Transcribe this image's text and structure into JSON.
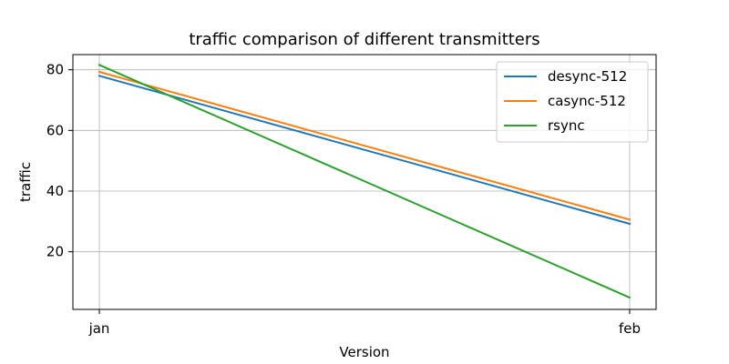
{
  "chart_data": {
    "type": "line",
    "title": "traffic comparison of different transmitters",
    "xlabel": "Version",
    "ylabel": "traffic",
    "categories": [
      "jan",
      "feb"
    ],
    "ylim": [
      1,
      85
    ],
    "yticks": [
      20,
      40,
      60,
      80
    ],
    "grid": true,
    "legend_position": "top-right",
    "series": [
      {
        "name": "desync-512",
        "color": "#1f77b4",
        "values": [
          78,
          29.2
        ]
      },
      {
        "name": "casync-512",
        "color": "#ff7f0e",
        "values": [
          79.3,
          30.6
        ]
      },
      {
        "name": "rsync",
        "color": "#2ca02c",
        "values": [
          81.6,
          4.9
        ]
      }
    ]
  }
}
